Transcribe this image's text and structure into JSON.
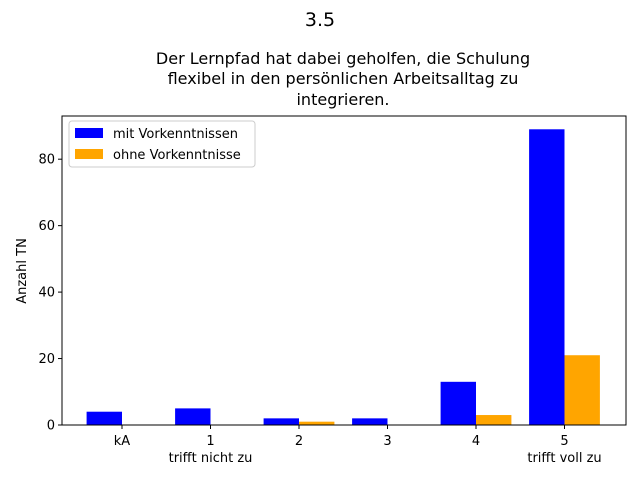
{
  "chart_data": {
    "type": "bar",
    "suptitle": "3.5",
    "title": [
      "Der Lernpfad hat dabei geholfen, die Schulung",
      "flexibel in den persönlichen Arbeitsalltag zu",
      "integrieren."
    ],
    "xlabel": "",
    "ylabel": "Anzahl TN",
    "categories": [
      "kA",
      "1",
      "2",
      "3",
      "4",
      "5"
    ],
    "category_sublabels": [
      "",
      "trifft nicht zu",
      "",
      "",
      "",
      "trifft voll zu"
    ],
    "series": [
      {
        "name": "mit Vorkenntnissen",
        "color": "#0000ff",
        "values": [
          4,
          5,
          2,
          2,
          13,
          89
        ]
      },
      {
        "name": "ohne Vorkenntnisse",
        "color": "#ffa500",
        "values": [
          0,
          0,
          1,
          0,
          3,
          21
        ]
      }
    ],
    "ylim": [
      0,
      93
    ],
    "yticks": [
      0,
      20,
      40,
      60,
      80
    ],
    "grid": false,
    "legend_position": "top-left"
  }
}
